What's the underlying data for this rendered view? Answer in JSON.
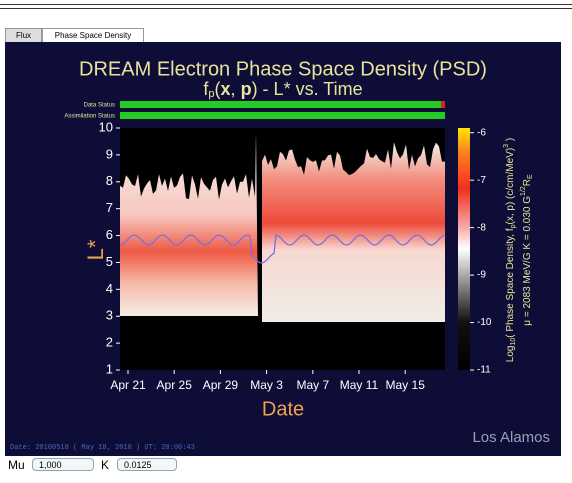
{
  "tabs": [
    "Flux",
    "Phase Space Density"
  ],
  "chart_data": {
    "type": "heatmap",
    "title": "DREAM Electron Phase Space Density (PSD)",
    "subtitle": [
      "f",
      "p",
      "(",
      "x",
      ", ",
      "p",
      ") - L*",
      " vs. Time"
    ],
    "status": [
      "Data Status",
      "Assimilation Status"
    ],
    "ylabel": "L*",
    "xlabel": "Date",
    "ylim": [
      1,
      10
    ],
    "yticks": [
      1,
      2,
      3,
      4,
      5,
      6,
      7,
      8,
      9,
      10
    ],
    "categories": [
      "Apr 21",
      "Apr 25",
      "Apr 29",
      "May 3",
      "May 7",
      "May 11",
      "May 15"
    ],
    "colorbar": {
      "lim": [
        -11,
        -5.9
      ],
      "ticks": [
        -6,
        -7,
        -8,
        -9,
        -10,
        -11
      ],
      "label": [
        "Log",
        "10",
        "( Phase Space Density, f",
        "p",
        "(x, p) (c/cm/MeV)",
        "3",
        " )"
      ],
      "label2": [
        "μ = 2083 MeV/G   K = 0.030 G",
        "1/2",
        "R",
        "E"
      ]
    }
  },
  "footer": "Date: 20100518 ( May 18, 2010 ) UT: 20:00:43",
  "logo": "Los Alamos",
  "controls": {
    "mu_label": "Mu",
    "mu_value": "1,000",
    "k_label": "K",
    "k_value": "0.0125"
  }
}
